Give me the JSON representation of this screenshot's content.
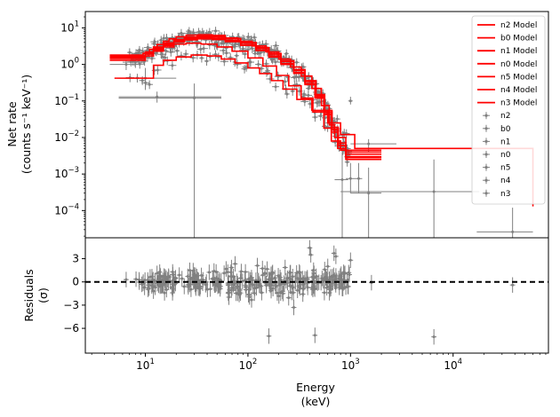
{
  "chart_data": [
    {
      "type": "line",
      "panel": "spectrum",
      "title": "",
      "ylabel_line1": "Net rate",
      "ylabel_line2": "(counts s⁻¹ keV⁻¹)",
      "xscale": "log",
      "yscale": "log",
      "xlim": [
        2.6,
        85000
      ],
      "ylim": [
        1.8e-05,
        28
      ],
      "y_ticks": [
        {
          "v": 10,
          "label": "10",
          "sup": "1"
        },
        {
          "v": 1,
          "label": "10",
          "sup": "0"
        },
        {
          "v": 0.1,
          "label": "10",
          "sup": "−1"
        },
        {
          "v": 0.01,
          "label": "10",
          "sup": "−2"
        },
        {
          "v": 0.001,
          "label": "10",
          "sup": "−3"
        },
        {
          "v": 0.0001,
          "label": "10",
          "sup": "−4"
        }
      ],
      "legend_position": "upper right",
      "model_color": "#ff0000",
      "data_color": "#808080",
      "models": [
        {
          "name": "n2 Model",
          "steps": [
            [
              4.5,
              1.8
            ],
            [
              8,
              1.8
            ],
            [
              9.5,
              2.0
            ],
            [
              11,
              2.6
            ],
            [
              13,
              3.5
            ],
            [
              15,
              4.3
            ],
            [
              17,
              5.0
            ],
            [
              20,
              5.7
            ],
            [
              25,
              6.3
            ],
            [
              33,
              6.5
            ],
            [
              45,
              6.2
            ],
            [
              60,
              5.3
            ],
            [
              80,
              4.3
            ],
            [
              110,
              3.2
            ],
            [
              150,
              2.2
            ],
            [
              200,
              1.4
            ],
            [
              260,
              0.85
            ],
            [
              330,
              0.48
            ],
            [
              420,
              0.22
            ],
            [
              520,
              0.075
            ],
            [
              620,
              0.022
            ],
            [
              700,
              0.01
            ],
            [
              900,
              0.004
            ],
            [
              2000,
              0.004
            ]
          ]
        },
        {
          "name": "b0 Model",
          "steps": [
            [
              5,
              0.42
            ],
            [
              10,
              0.42
            ],
            [
              12,
              0.95
            ],
            [
              15,
              1.3
            ],
            [
              20,
              1.6
            ],
            [
              28,
              1.8
            ],
            [
              40,
              1.7
            ],
            [
              55,
              1.4
            ],
            [
              75,
              1.1
            ],
            [
              100,
              0.8
            ],
            [
              130,
              0.56
            ],
            [
              170,
              0.36
            ],
            [
              220,
              0.21
            ],
            [
              300,
              0.11
            ],
            [
              420,
              0.055
            ],
            [
              600,
              0.025
            ],
            [
              800,
              0.012
            ],
            [
              1100,
              0.005
            ],
            [
              60000,
              0.00013
            ]
          ]
        },
        {
          "name": "n1 Model",
          "steps": [
            [
              4.5,
              1.3
            ],
            [
              8,
              1.3
            ],
            [
              10,
              1.7
            ],
            [
              12,
              2.3
            ],
            [
              15,
              3.0
            ],
            [
              19,
              3.6
            ],
            [
              25,
              3.8
            ],
            [
              35,
              3.6
            ],
            [
              50,
              3.0
            ],
            [
              70,
              2.3
            ],
            [
              100,
              1.5
            ],
            [
              140,
              0.9
            ],
            [
              190,
              0.5
            ],
            [
              250,
              0.26
            ],
            [
              330,
              0.12
            ],
            [
              430,
              0.05
            ],
            [
              550,
              0.018
            ],
            [
              650,
              0.008
            ],
            [
              800,
              0.0045
            ],
            [
              2000,
              0.0045
            ]
          ]
        },
        {
          "name": "n0 Model",
          "steps": [
            [
              4.5,
              1.55
            ],
            [
              8,
              1.55
            ],
            [
              10,
              2.0
            ],
            [
              12,
              2.7
            ],
            [
              15,
              3.5
            ],
            [
              19,
              4.3
            ],
            [
              24,
              5.0
            ],
            [
              32,
              5.3
            ],
            [
              45,
              5.1
            ],
            [
              60,
              4.5
            ],
            [
              85,
              3.5
            ],
            [
              120,
              2.5
            ],
            [
              160,
              1.7
            ],
            [
              210,
              1.05
            ],
            [
              280,
              0.6
            ],
            [
              360,
              0.3
            ],
            [
              450,
              0.13
            ],
            [
              550,
              0.045
            ],
            [
              650,
              0.016
            ],
            [
              750,
              0.006
            ],
            [
              900,
              0.0035
            ],
            [
              2000,
              0.0035
            ]
          ]
        },
        {
          "name": "n5 Model",
          "steps": [
            [
              4.5,
              1.6
            ],
            [
              8,
              1.6
            ],
            [
              10,
              2.1
            ],
            [
              12,
              2.8
            ],
            [
              15,
              3.7
            ],
            [
              19,
              4.6
            ],
            [
              24,
              5.4
            ],
            [
              32,
              5.8
            ],
            [
              45,
              5.6
            ],
            [
              60,
              5.0
            ],
            [
              85,
              3.9
            ],
            [
              120,
              2.8
            ],
            [
              160,
              1.9
            ],
            [
              210,
              1.2
            ],
            [
              280,
              0.68
            ],
            [
              360,
              0.34
            ],
            [
              460,
              0.14
            ],
            [
              560,
              0.05
            ],
            [
              660,
              0.017
            ],
            [
              760,
              0.006
            ],
            [
              900,
              0.003
            ],
            [
              2000,
              0.003
            ]
          ]
        },
        {
          "name": "n4 Model",
          "steps": [
            [
              4.5,
              1.45
            ],
            [
              8,
              1.45
            ],
            [
              10,
              1.9
            ],
            [
              12,
              2.5
            ],
            [
              15,
              3.3
            ],
            [
              19,
              4.1
            ],
            [
              24,
              4.7
            ],
            [
              32,
              5.0
            ],
            [
              45,
              4.8
            ],
            [
              60,
              4.2
            ],
            [
              85,
              3.3
            ],
            [
              120,
              2.4
            ],
            [
              160,
              1.6
            ],
            [
              210,
              1.0
            ],
            [
              280,
              0.57
            ],
            [
              360,
              0.28
            ],
            [
              450,
              0.12
            ],
            [
              550,
              0.042
            ],
            [
              650,
              0.014
            ],
            [
              750,
              0.005
            ],
            [
              900,
              0.0025
            ],
            [
              2000,
              0.0025
            ]
          ]
        },
        {
          "name": "n3 Model",
          "steps": [
            [
              4.5,
              1.7
            ],
            [
              8,
              1.7
            ],
            [
              10,
              2.2
            ],
            [
              12,
              3.0
            ],
            [
              15,
              3.9
            ],
            [
              19,
              4.8
            ],
            [
              24,
              5.6
            ],
            [
              32,
              6.0
            ],
            [
              45,
              5.8
            ],
            [
              60,
              5.1
            ],
            [
              85,
              4.0
            ],
            [
              120,
              2.9
            ],
            [
              160,
              2.0
            ],
            [
              210,
              1.25
            ],
            [
              280,
              0.72
            ],
            [
              360,
              0.36
            ],
            [
              460,
              0.15
            ],
            [
              560,
              0.055
            ],
            [
              660,
              0.019
            ],
            [
              760,
              0.007
            ],
            [
              900,
              0.0028
            ],
            [
              2000,
              0.0028
            ]
          ]
        }
      ],
      "data_series": [
        "n2",
        "b0",
        "n1",
        "n0",
        "n5",
        "n4",
        "n3"
      ],
      "outliers": [
        {
          "x": 30,
          "y": 0.12,
          "xerr": [
            5.5,
            55
          ],
          "yerr": [
            1e-07,
            0.3
          ]
        },
        {
          "x": 10,
          "y": 0.42,
          "xerr": [
            5.5,
            20
          ],
          "yerr": [
            0.2,
            0.8
          ]
        },
        {
          "x": 13,
          "y": 0.13,
          "xerr": [
            5.5,
            55
          ],
          "yerr": [
            0.09,
            0.18
          ]
        },
        {
          "x": 6.5,
          "y": 1.0,
          "xerr": [
            4.5,
            8.5
          ],
          "yerr": [
            0.7,
            1.3
          ]
        },
        {
          "x": 8,
          "y": 1.15,
          "xerr": [
            6,
            10
          ],
          "yerr": [
            0.8,
            1.5
          ]
        },
        {
          "x": 830,
          "y": 0.0007,
          "xerr": [
            700,
            950
          ],
          "yerr": [
            1e-07,
            0.004
          ]
        },
        {
          "x": 1000,
          "y": 0.00075,
          "xerr": [
            900,
            1100
          ],
          "yerr": [
            0.0003,
            0.002
          ]
        },
        {
          "x": 1200,
          "y": 0.00075,
          "xerr": [
            1100,
            1300
          ],
          "yerr": [
            0.0003,
            0.002
          ]
        },
        {
          "x": 1500,
          "y": 0.0003,
          "xerr": [
            1000,
            2000
          ],
          "yerr": [
            1e-07,
            0.0015
          ]
        },
        {
          "x": 1500,
          "y": 0.0067,
          "xerr": [
            1000,
            2800
          ],
          "yerr": [
            0.004,
            0.009
          ]
        },
        {
          "x": 6500,
          "y": 0.00033,
          "xerr": [
            800,
            18000
          ],
          "yerr": [
            1e-07,
            0.0025
          ]
        },
        {
          "x": 38000,
          "y": 2.6e-05,
          "xerr": [
            17000,
            60000
          ],
          "yerr": [
            1e-07,
            0.00012
          ]
        },
        {
          "x": 1000,
          "y": 0.1,
          "xerr": [
            950,
            1050
          ],
          "yerr": [
            0.08,
            0.13
          ]
        }
      ]
    },
    {
      "type": "scatter",
      "panel": "residuals",
      "ylabel_line1": "Residuals",
      "ylabel_line2": "(σ)",
      "xlabel_line1": "Energy",
      "xlabel_line2": "(keV)",
      "xscale": "log",
      "xlim": [
        2.6,
        85000
      ],
      "ylim": [
        -9.2,
        5.7
      ],
      "y_ticks": [
        3,
        0,
        -3,
        -6
      ],
      "y_tick_labels": [
        "3",
        "0",
        "−3",
        "−6"
      ],
      "x_ticks": [
        {
          "v": 10,
          "label": "10",
          "sup": "1"
        },
        {
          "v": 100,
          "label": "10",
          "sup": "2"
        },
        {
          "v": 1000,
          "label": "10",
          "sup": "3"
        },
        {
          "v": 10000,
          "label": "10",
          "sup": "4"
        }
      ],
      "zero_line": true,
      "outliers": [
        {
          "x": 6.5,
          "y": 0.3
        },
        {
          "x": 9.5,
          "y": -0.2
        },
        {
          "x": 13,
          "y": 1.1
        },
        {
          "x": 30,
          "y": 0.9
        },
        {
          "x": 160,
          "y": -7.0
        },
        {
          "x": 220,
          "y": -1.5
        },
        {
          "x": 280,
          "y": -3.3
        },
        {
          "x": 400,
          "y": 4.4
        },
        {
          "x": 410,
          "y": 3.5
        },
        {
          "x": 450,
          "y": -6.9
        },
        {
          "x": 560,
          "y": 1.6
        },
        {
          "x": 600,
          "y": 2.0
        },
        {
          "x": 690,
          "y": 3.7
        },
        {
          "x": 720,
          "y": 3.3
        },
        {
          "x": 800,
          "y": 0.4
        },
        {
          "x": 960,
          "y": 1.2
        },
        {
          "x": 1000,
          "y": 2.8
        },
        {
          "x": 1600,
          "y": -0.1
        },
        {
          "x": 6500,
          "y": -7.1
        },
        {
          "x": 38000,
          "y": -0.4
        }
      ]
    }
  ]
}
